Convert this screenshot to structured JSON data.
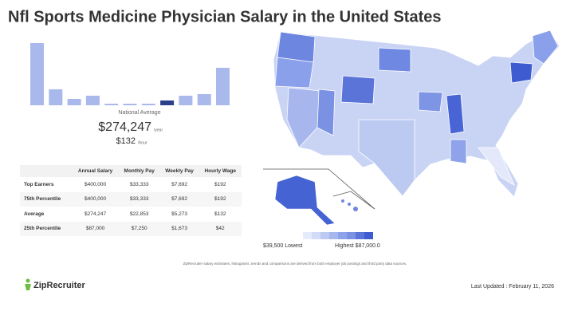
{
  "title": "Nfl Sports Medicine Physician Salary in the United States",
  "chart_data": {
    "type": "bar",
    "values": [
      78,
      20,
      8,
      12,
      2,
      2,
      2,
      6,
      12,
      14,
      47
    ],
    "color": "#aab9ec",
    "highlight_color": "#2b3f8a",
    "highlight_index": 7
  },
  "national_average": {
    "label": "National Average",
    "annual": "$274,247",
    "annual_unit": "/year",
    "hourly": "$132",
    "hourly_unit": "/hour"
  },
  "table": {
    "headers": [
      "Annual Salary",
      "Monthly Pay",
      "Weekly Pay",
      "Hourly Wage"
    ],
    "rows": [
      [
        "Top Earners",
        "$400,000",
        "$33,333",
        "$7,692",
        "$192"
      ],
      [
        "75th Percentile",
        "$400,000",
        "$33,333",
        "$7,692",
        "$192"
      ],
      [
        "Average",
        "$274,247",
        "$22,853",
        "$5,273",
        "$132"
      ],
      [
        "25th Percentile",
        "$87,000",
        "$7,250",
        "$1,673",
        "$42"
      ]
    ]
  },
  "map_legend": {
    "low": "$39,500 Lowest",
    "high": "Highest $87,000.0"
  },
  "footnote": "ZipRecruiter salary estimates, histograms, trends and comparisons are derived from both employer job postings and third party data sources.",
  "brand": "ZipRecruiter",
  "last_updated": "Last Updated : February 11, 2026"
}
